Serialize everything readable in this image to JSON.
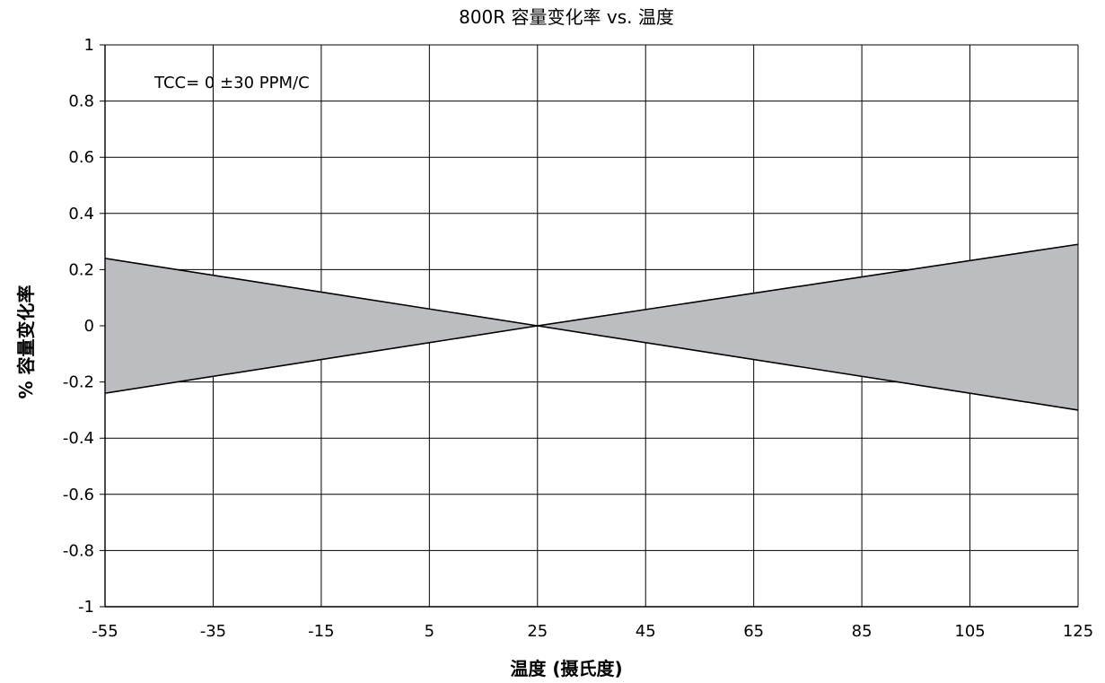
{
  "chart_data": {
    "type": "area",
    "title": "800R 容量变化率 vs. 温度",
    "xlabel": "温度 (摄氏度)",
    "ylabel": "% 容量变化率",
    "annotation": "TCC= 0 ±30 PPM/C",
    "xlim": [
      -55,
      125
    ],
    "ylim": [
      -1,
      1
    ],
    "x_ticks": [
      "-55",
      "-35",
      "-15",
      "5",
      "25",
      "45",
      "65",
      "85",
      "105",
      "125"
    ],
    "y_ticks": [
      "1",
      "0.8",
      "0.6",
      "0.4",
      "0.2",
      "0",
      "-0.2",
      "-0.4",
      "-0.6",
      "-0.8",
      "-1"
    ],
    "grid": true,
    "band_color": "#bcbdc1",
    "line_color": "#000000",
    "series": [
      {
        "x": [
          -55,
          25,
          125
        ],
        "values": [
          0.24,
          0,
          -0.3
        ]
      },
      {
        "x": [
          -55,
          25,
          125
        ],
        "values": [
          -0.24,
          0,
          0.29
        ]
      }
    ]
  }
}
